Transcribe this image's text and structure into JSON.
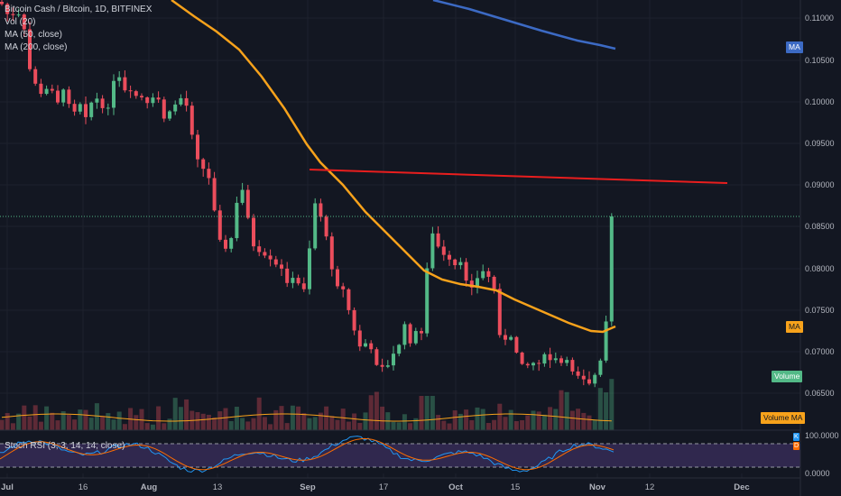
{
  "legend": {
    "symbol": "Bitcoin Cash / Bitcoin, 1D, BITFINEX",
    "vol": "Vol (20)",
    "ma50": "MA (50, close)",
    "ma200": "MA (200, close)"
  },
  "price_axis": {
    "labels": [
      "0.11000",
      "0.10500",
      "0.10000",
      "0.09500",
      "0.09000",
      "0.08500",
      "0.08000",
      "0.07500",
      "0.07000",
      "0.06500"
    ],
    "values": [
      0.11,
      0.105,
      0.1,
      0.095,
      0.09,
      0.085,
      0.08,
      0.075,
      0.07,
      0.065
    ]
  },
  "stoch_axis": {
    "labels": [
      "100.0000",
      "0.0000"
    ]
  },
  "time_axis": {
    "labels": [
      "Jul",
      "16",
      "Aug",
      "13",
      "Sep",
      "17",
      "Oct",
      "15",
      "Nov",
      "12",
      "Dec"
    ],
    "bold": [
      true,
      false,
      true,
      false,
      true,
      false,
      true,
      false,
      true,
      false,
      true
    ]
  },
  "badges": {
    "ma200": "MA",
    "ma50": "MA",
    "volume": "Volume",
    "volume_ma": "Volume MA",
    "k": "K",
    "d": "D"
  },
  "stoch_label": "Stoch RSI (3, 3, 14, 14, close)",
  "colors": {
    "background": "#131722",
    "up": "#53b987",
    "down": "#eb4d5c",
    "ma50": "#f7a21b",
    "ma200": "#3c6ac4",
    "trendline": "#e91e1e",
    "stoch_k": "#2196f3",
    "stoch_d": "#ff6d00",
    "stoch_band": "#7e57c2"
  },
  "icons": [
    "trendline-drawing"
  ]
}
